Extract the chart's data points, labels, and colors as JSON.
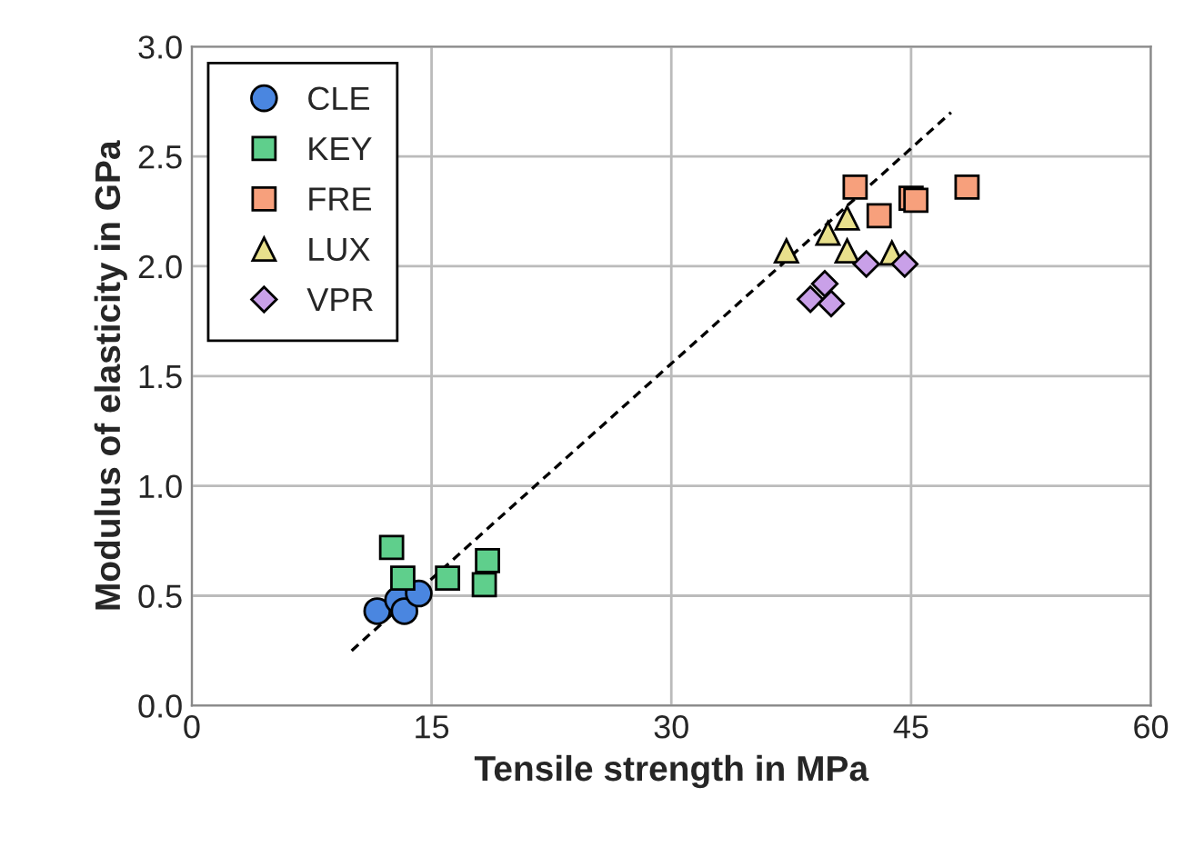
{
  "chart_data": {
    "type": "scatter",
    "xlabel": "Tensile strength in MPa",
    "ylabel": "Modulus of elasticity in GPa",
    "xlim": [
      0,
      60
    ],
    "ylim": [
      0,
      3.0
    ],
    "xticks": [
      0,
      15,
      30,
      45,
      60
    ],
    "yticks": [
      {
        "value": 0,
        "label": "0.0"
      },
      0.5,
      {
        "value": 1,
        "label": "1.0"
      },
      1.5,
      {
        "value": 2,
        "label": "2.0"
      },
      2.5,
      {
        "value": 3,
        "label": "3.0"
      }
    ],
    "grid": true,
    "legend": "top left",
    "series": [
      {
        "name": "CLE",
        "color": "#4a86e0",
        "marker": "circle",
        "x": [
          11.6,
          12.9,
          13.3,
          14.2
        ],
        "values": [
          0.43,
          0.48,
          0.43,
          0.51
        ]
      },
      {
        "name": "KEY",
        "color": "#5fcf8c",
        "marker": "square",
        "x": [
          12.5,
          13.2,
          16.0,
          18.5,
          18.3
        ],
        "values": [
          0.72,
          0.58,
          0.58,
          0.66,
          0.55
        ]
      },
      {
        "name": "FRE",
        "color": "#f7a07c",
        "marker": "square",
        "x": [
          41.5,
          43.0,
          45.0,
          45.3,
          48.5
        ],
        "values": [
          2.36,
          2.23,
          2.31,
          2.3,
          2.36
        ]
      },
      {
        "name": "LUX",
        "color": "#e8e08c",
        "marker": "triangle",
        "x": [
          37.2,
          39.8,
          41.0,
          41.0,
          43.8
        ],
        "values": [
          2.07,
          2.15,
          2.22,
          2.07,
          2.06
        ]
      },
      {
        "name": "VPR",
        "color": "#c9a0e8",
        "marker": "diamond",
        "x": [
          42.2,
          44.6,
          39.6,
          38.7,
          40.0
        ],
        "values": [
          2.01,
          2.01,
          1.92,
          1.85,
          1.83
        ]
      },
      {
        "type": "line",
        "color": "#000000",
        "line_style": "dashed",
        "marker": "none",
        "x": [
          10.0,
          47.5
        ],
        "values": [
          0.25,
          2.7
        ]
      }
    ]
  }
}
